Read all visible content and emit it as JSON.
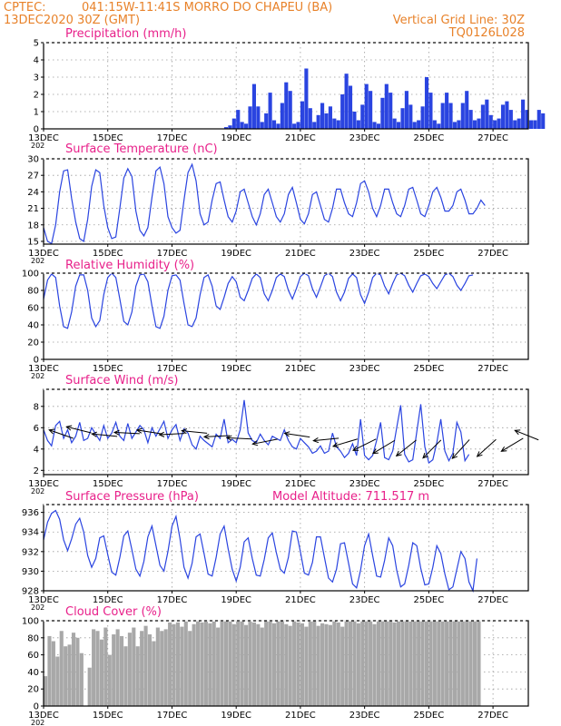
{
  "header": {
    "line1_left": "CPTEC:",
    "location": "041:15W-11:41S  MORRO DO CHAPEU (BA)",
    "line2_left": "13DEC2020 30Z (GMT)",
    "vertical_grid": "Vertical Grid Line: 30Z",
    "run_id": "TQ0126L028"
  },
  "colors": {
    "header": "#e8822a",
    "title": "#e8208a",
    "line": "#2a44e0",
    "cloud": "#a8a8a8",
    "frame": "#000000"
  },
  "x_axis": {
    "ticks": [
      "13DEC",
      "15DEC",
      "17DEC",
      "19DEC",
      "21DEC",
      "23DEC",
      "25DEC",
      "27DEC"
    ],
    "tick_days": [
      13,
      15,
      17,
      19,
      21,
      23,
      25,
      27
    ],
    "year_fragment": "202",
    "range_days": [
      13,
      28.1
    ]
  },
  "chart_data": [
    {
      "type": "bar",
      "title": "Precipitation (mm/h)",
      "ylim": [
        0,
        5
      ],
      "yticks": [
        0,
        1,
        2,
        3,
        4,
        5
      ],
      "x_start_day": 13,
      "step_hours": 3,
      "values": [
        0,
        0,
        0,
        0,
        0,
        0,
        0,
        0,
        0,
        0,
        0,
        0,
        0,
        0,
        0,
        0,
        0,
        0,
        0,
        0,
        0,
        0,
        0,
        0,
        0,
        0,
        0,
        0,
        0,
        0,
        0,
        0,
        0,
        0,
        0,
        0,
        0,
        0,
        0,
        0,
        0,
        0,
        0,
        0,
        0,
        0.1,
        0.2,
        0.6,
        1.1,
        0.4,
        0.3,
        1.3,
        2.6,
        1.3,
        0.4,
        0.9,
        2.1,
        0.5,
        0.3,
        1.5,
        2.7,
        2.2,
        0.3,
        0.4,
        1.6,
        3.5,
        1.2,
        0.4,
        0.8,
        1.5,
        0.9,
        1.3,
        0.6,
        0.5,
        2.0,
        3.2,
        2.5,
        1.0,
        0.5,
        1.4,
        2.6,
        2.2,
        0.4,
        0.3,
        1.8,
        2.6,
        2.1,
        0.6,
        0.4,
        1.2,
        2.2,
        1.4,
        0.4,
        0.5,
        1.3,
        3.0,
        2.1,
        0.5,
        0.3,
        1.5,
        2.1,
        1.5,
        0.4,
        0.5,
        1.5,
        2.2,
        1.1,
        0.5,
        0.6,
        1.4,
        1.7,
        0.8,
        0.5,
        0.6,
        1.4,
        1.6,
        1.1,
        0.5,
        0.6,
        1.7,
        1.1,
        0.5,
        0.5,
        1.1,
        0.9
      ]
    },
    {
      "type": "line",
      "title": "Surface Temperature (nC)",
      "ylim": [
        14.5,
        30
      ],
      "yticks": [
        15,
        18,
        21,
        24,
        27,
        30
      ],
      "x_start_day": 13,
      "step_hours": 3,
      "values": [
        17.5,
        15,
        14.6,
        18,
        24,
        27.8,
        28,
        22.8,
        18.5,
        15.5,
        15,
        19,
        25,
        28,
        27.5,
        21.5,
        17.5,
        15.5,
        15.8,
        21,
        26.5,
        28.2,
        26.8,
        20.5,
        17,
        16,
        17.5,
        23,
        27.8,
        28.5,
        25.5,
        19.5,
        17.5,
        16.5,
        17,
        22.5,
        27.5,
        29,
        26,
        20,
        18,
        18.5,
        22.5,
        25.5,
        25.8,
        22.5,
        19.5,
        18.5,
        20.5,
        24,
        24.5,
        22,
        19.5,
        18,
        20,
        23.5,
        24.5,
        22,
        19.5,
        18.5,
        20,
        23.5,
        24.8,
        22,
        19,
        18.2,
        20,
        23.5,
        24,
        21.5,
        19,
        18.5,
        21,
        24.5,
        24.5,
        22,
        20,
        19.5,
        22,
        25.5,
        26,
        24,
        21,
        19.5,
        21.5,
        24.5,
        24.5,
        22,
        20,
        19.5,
        21.5,
        24.5,
        24.8,
        22.5,
        20,
        19.5,
        21.5,
        24,
        24.8,
        23,
        20.5,
        20.5,
        21.5,
        24,
        24.5,
        22.5,
        20,
        20,
        21,
        22.5,
        21.5
      ]
    },
    {
      "type": "line",
      "title": "Relative Humidity (%)",
      "ylim": [
        0,
        100
      ],
      "yticks": [
        0,
        20,
        40,
        60,
        80,
        100
      ],
      "x_start_day": 13,
      "step_hours": 3,
      "values": [
        70,
        92,
        99,
        95,
        62,
        38,
        36,
        55,
        85,
        98,
        98,
        80,
        48,
        38,
        45,
        75,
        95,
        100,
        95,
        70,
        44,
        40,
        55,
        85,
        98,
        99,
        90,
        62,
        38,
        36,
        50,
        80,
        97,
        98,
        92,
        65,
        40,
        38,
        48,
        75,
        95,
        98,
        85,
        62,
        58,
        72,
        88,
        96,
        90,
        72,
        68,
        80,
        94,
        99,
        95,
        76,
        68,
        80,
        95,
        99,
        96,
        80,
        70,
        82,
        96,
        100,
        97,
        82,
        72,
        84,
        97,
        100,
        96,
        78,
        68,
        78,
        94,
        99,
        95,
        75,
        65,
        78,
        95,
        100,
        98,
        85,
        76,
        88,
        98,
        100,
        97,
        86,
        78,
        88,
        97,
        99,
        96,
        88,
        82,
        90,
        98,
        100,
        96,
        86,
        80,
        88,
        97,
        98
      ]
    },
    {
      "type": "line",
      "title": "Surface Wind (m/s)",
      "ylim": [
        1.6,
        9.6
      ],
      "yticks": [
        2,
        4,
        6,
        8
      ],
      "x_start_day": 13,
      "step_hours": 3,
      "values": [
        5.8,
        4.8,
        4.3,
        6.2,
        6.6,
        5.0,
        5.8,
        4.6,
        5.2,
        6.5,
        4.8,
        5.0,
        6.0,
        5.4,
        4.8,
        6.2,
        5.0,
        5.5,
        6.5,
        5.2,
        4.8,
        6.4,
        5.0,
        5.6,
        6.2,
        5.8,
        4.6,
        6.0,
        5.2,
        5.9,
        6.6,
        5.0,
        5.8,
        6.3,
        4.8,
        5.9,
        5.5,
        4.4,
        4.0,
        5.2,
        4.8,
        4.5,
        4.2,
        5.4,
        5.0,
        6.8,
        4.6,
        4.9,
        4.6,
        5.8,
        8.6,
        5.5,
        4.8,
        4.6,
        5.4,
        4.8,
        4.4,
        5.2,
        5.0,
        4.8,
        5.8,
        4.8,
        4.2,
        4.0,
        5.0,
        4.6,
        4.2,
        3.6,
        3.8,
        4.3,
        3.6,
        3.8,
        5.5,
        4.2,
        3.8,
        3.2,
        3.6,
        4.5,
        3.4,
        6.8,
        3.4,
        3.0,
        3.4,
        4.8,
        6.5,
        3.2,
        3.0,
        3.8,
        6.0,
        8.1,
        3.5,
        2.8,
        3.0,
        5.6,
        8.2,
        4.2,
        2.7,
        3.0,
        4.6,
        6.8,
        3.8,
        2.9,
        3.6,
        6.5,
        5.6,
        2.9,
        3.5
      ],
      "arrows": [
        {
          "day": 13.55,
          "speed": 5.4,
          "dx": -1,
          "dy": 0.35
        },
        {
          "day": 14.1,
          "speed": 5.8,
          "dx": -1,
          "dy": 0.25
        },
        {
          "day": 14.9,
          "speed": 5.3,
          "dx": -1,
          "dy": 0.1
        },
        {
          "day": 15.6,
          "speed": 5.5,
          "dx": -1,
          "dy": 0.05
        },
        {
          "day": 16.3,
          "speed": 5.6,
          "dx": -1,
          "dy": 0.15
        },
        {
          "day": 17.0,
          "speed": 5.4,
          "dx": -1,
          "dy": -0.05
        },
        {
          "day": 17.7,
          "speed": 5.6,
          "dx": -1,
          "dy": 0.1
        },
        {
          "day": 18.4,
          "speed": 5.2,
          "dx": -1,
          "dy": -0.05
        },
        {
          "day": 19.1,
          "speed": 5.0,
          "dx": -1,
          "dy": 0.05
        },
        {
          "day": 19.9,
          "speed": 4.7,
          "dx": -1,
          "dy": -0.2
        },
        {
          "day": 20.9,
          "speed": 5.3,
          "dx": -1,
          "dy": 0.15
        },
        {
          "day": 21.8,
          "speed": 4.9,
          "dx": -1,
          "dy": -0.1
        },
        {
          "day": 22.4,
          "speed": 4.6,
          "dx": -1,
          "dy": -0.3
        },
        {
          "day": 23.0,
          "speed": 4.4,
          "dx": -1,
          "dy": -0.5
        },
        {
          "day": 23.6,
          "speed": 4.2,
          "dx": -1,
          "dy": -0.6
        },
        {
          "day": 24.3,
          "speed": 4.1,
          "dx": -1,
          "dy": -0.8
        },
        {
          "day": 25.1,
          "speed": 4.0,
          "dx": -1,
          "dy": -1.0
        },
        {
          "day": 26.0,
          "speed": 4.0,
          "dx": -1,
          "dy": -1.1
        },
        {
          "day": 26.8,
          "speed": 4.1,
          "dx": -1,
          "dy": -0.9
        },
        {
          "day": 27.6,
          "speed": 4.4,
          "dx": -1,
          "dy": -0.6
        },
        {
          "day": 28.05,
          "speed": 5.3,
          "dx": -1,
          "dy": 0.4
        }
      ]
    },
    {
      "type": "line",
      "title": "Surface Pressure (hPa)",
      "annotation": "Model Altitude: 711.517 m",
      "ylim": [
        928,
        936.8
      ],
      "yticks": [
        928,
        930,
        932,
        934,
        936
      ],
      "x_start_day": 13,
      "step_hours": 3,
      "values": [
        933.2,
        935.0,
        935.9,
        936.2,
        935.3,
        933.2,
        932.1,
        933.3,
        934.8,
        935.4,
        934.0,
        931.6,
        930.4,
        931.3,
        933.4,
        933.6,
        931.7,
        929.9,
        929.6,
        931.4,
        933.6,
        934.1,
        932.2,
        930.2,
        929.5,
        931.0,
        933.5,
        934.6,
        932.6,
        930.6,
        930.0,
        932.0,
        934.6,
        935.6,
        933.3,
        930.4,
        929.3,
        930.8,
        933.5,
        933.8,
        931.8,
        929.7,
        929.5,
        931.4,
        933.8,
        934.6,
        932.3,
        930.2,
        929.0,
        930.4,
        933.0,
        933.4,
        931.3,
        929.6,
        929.5,
        931.2,
        933.4,
        933.9,
        931.9,
        930.2,
        929.8,
        931.4,
        934.1,
        934.0,
        932.0,
        929.8,
        929.6,
        930.9,
        933.5,
        933.5,
        931.4,
        929.3,
        928.9,
        930.2,
        932.8,
        932.9,
        930.8,
        928.7,
        928.3,
        930.1,
        932.6,
        933.8,
        931.6,
        929.5,
        929.4,
        931.1,
        933.4,
        932.6,
        930.1,
        928.4,
        928.7,
        930.6,
        932.9,
        932.6,
        930.3,
        928.6,
        928.7,
        930.4,
        932.6,
        931.8,
        929.7,
        928.1,
        928.4,
        930.2,
        932.0,
        931.3,
        928.9,
        928.0,
        931.3
      ]
    },
    {
      "type": "bar",
      "title": "Cloud Cover (%)",
      "ylim": [
        0,
        100
      ],
      "yticks": [
        0,
        20,
        40,
        60,
        80,
        100
      ],
      "x_start_day": 13,
      "step_hours": 3,
      "values": [
        35,
        82,
        76,
        58,
        88,
        70,
        72,
        86,
        80,
        62,
        0,
        45,
        90,
        88,
        78,
        92,
        60,
        84,
        90,
        82,
        70,
        86,
        92,
        70,
        88,
        94,
        84,
        76,
        92,
        88,
        90,
        98,
        96,
        98,
        93,
        99,
        88,
        96,
        100,
        98,
        99,
        97,
        99,
        92,
        99,
        100,
        99,
        96,
        99,
        100,
        95,
        99,
        98,
        96,
        92,
        100,
        99,
        97,
        100,
        100,
        96,
        94,
        100,
        98,
        97,
        93,
        99,
        100,
        94,
        97,
        96,
        95,
        100,
        98,
        93,
        100,
        100,
        100,
        97,
        100,
        100,
        100,
        96,
        100,
        100,
        100,
        100,
        98,
        100,
        100,
        100,
        99,
        100,
        100,
        100,
        100,
        100,
        100,
        100,
        99,
        100,
        100,
        100,
        100,
        100,
        100,
        100,
        100,
        100
      ]
    }
  ]
}
